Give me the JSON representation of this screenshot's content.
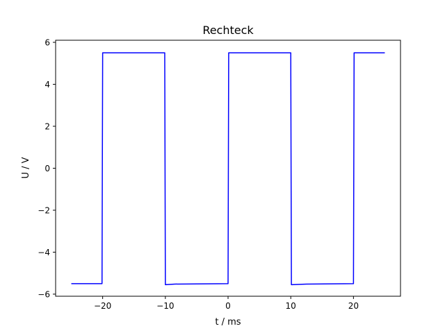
{
  "chart_data": {
    "type": "line",
    "title": "Rechteck",
    "xlabel": "t / ms",
    "ylabel": "U / V",
    "xlim": [
      -27.5,
      27.5
    ],
    "ylim": [
      -6.1,
      6.1
    ],
    "xticks": [
      -20,
      -10,
      0,
      10,
      20
    ],
    "yticks": [
      -6,
      -4,
      -2,
      0,
      2,
      4,
      6
    ],
    "xtick_labels": [
      "−20",
      "−10",
      "0",
      "10",
      "20"
    ],
    "ytick_labels": [
      "−6",
      "−4",
      "−2",
      "0",
      "2",
      "4",
      "6"
    ],
    "grid": false,
    "legend": "none",
    "series": [
      {
        "color": "#0000ff",
        "x": [
          -25,
          -20.1,
          -20,
          -10.1,
          -10,
          -8.5,
          0,
          0.1,
          10,
          10.1,
          12.5,
          20,
          20.1,
          25
        ],
        "y": [
          -5.5,
          -5.5,
          5.5,
          5.5,
          -5.55,
          -5.52,
          -5.5,
          5.5,
          5.5,
          -5.55,
          -5.52,
          -5.5,
          5.5,
          5.5
        ]
      }
    ]
  }
}
